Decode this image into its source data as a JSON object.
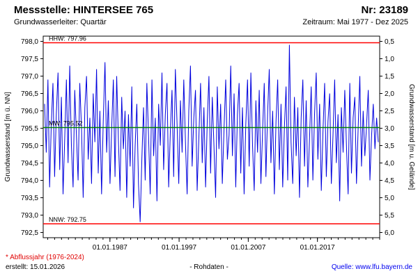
{
  "header": {
    "station_label": "Messstelle: HINTERSEE 765",
    "number_label": "Nr: 23189",
    "aquifer_label": "Grundwasserleiter: Quartär",
    "period_label": "Zeitraum: Mai 1977 - Dez 2025"
  },
  "footer": {
    "note": "* Abflussjahr (1976-2024)",
    "created": "erstellt: 15.01.2026",
    "center": "- Rohdaten -",
    "source_label": "Quelle:",
    "source_link": "www.lfu.bayern.de"
  },
  "colors": {
    "series": "#0000dd",
    "extreme_line": "#ff0000",
    "mean_line": "#008000",
    "frame": "#000000",
    "note_red": "#e00000",
    "link_blue": "#0000ee"
  },
  "chart_data": {
    "type": "line",
    "title": "",
    "ylabel_left": "Grundwasserstand [m ü. NN]",
    "ylabel_right": "Grundwasserstand [m u. Gelände]",
    "xlabel": "",
    "grid": false,
    "legend": "none",
    "ylim_left": [
      792.35,
      798.15
    ],
    "x_range_years": [
      1977.35,
      2026.0
    ],
    "y_tick_values": [
      798.0,
      797.5,
      797.0,
      796.5,
      796.0,
      795.5,
      795.0,
      794.5,
      794.0,
      793.5,
      793.0,
      792.5
    ],
    "y_tick_labels_left": [
      "798,0",
      "797,5",
      "797,0",
      "796,5",
      "796,0",
      "795,5",
      "795,0",
      "794,5",
      "794,0",
      "793,5",
      "793,0",
      "792,5"
    ],
    "y_tick_labels_right": [
      "0,5",
      "1,0",
      "1,5",
      "2,0",
      "2,5",
      "3,0",
      "3,5",
      "4,0",
      "4,5",
      "5,0",
      "5,5",
      "6,0"
    ],
    "x_ticks": [
      {
        "label": "01.01.1987",
        "year": 1987
      },
      {
        "label": "01.01.1997",
        "year": 1997
      },
      {
        "label": "01.01.2007",
        "year": 2007
      },
      {
        "label": "01.01.2017",
        "year": 2017
      }
    ],
    "reference_lines": [
      {
        "name": "HHW",
        "label": "HHW: 797.96",
        "value": 797.96,
        "color": "#ff0000"
      },
      {
        "name": "MW",
        "label": "MW: 795.52",
        "value": 795.52,
        "color": "#008000"
      },
      {
        "name": "NNW",
        "label": "NNW: 792.75",
        "value": 792.75,
        "color": "#ff0000"
      }
    ],
    "series": [
      {
        "name": "Rohdaten",
        "color": "#0000dd",
        "values": [
          796.2,
          794.8,
          796.9,
          793.8,
          795.6,
          796.8,
          794.1,
          795.9,
          797.1,
          794.3,
          796.4,
          793.6,
          795.2,
          796.9,
          794.5,
          797.3,
          795.0,
          793.8,
          796.6,
          795.3,
          794.0,
          796.8,
          795.5,
          793.5,
          796.1,
          797.0,
          794.6,
          795.8,
          793.9,
          796.5,
          795.1,
          797.2,
          794.2,
          796.0,
          793.6,
          795.7,
          797.4,
          794.8,
          796.3,
          793.9,
          795.5,
          796.9,
          794.1,
          797.0,
          795.2,
          793.7,
          796.4,
          794.9,
          796.0,
          793.5,
          795.9,
          794.4,
          796.7,
          793.2,
          795.0,
          796.2,
          793.9,
          792.8,
          794.6,
          796.1,
          794.0,
          796.8,
          795.3,
          793.6,
          796.9,
          794.7,
          795.8,
          793.4,
          796.2,
          795.0,
          797.1,
          794.3,
          795.9,
          796.8,
          793.8,
          795.4,
          796.6,
          794.1,
          797.2,
          795.6,
          793.9,
          796.3,
          794.8,
          796.9,
          795.1,
          793.6,
          796.0,
          797.3,
          794.4,
          795.8,
          796.6,
          793.7,
          795.2,
          796.8,
          794.5,
          796.1,
          793.8,
          795.7,
          797.0,
          794.2,
          796.4,
          795.0,
          793.5,
          796.7,
          794.9,
          796.2,
          793.9,
          795.5,
          796.9,
          794.6,
          795.3,
          797.3,
          794.7,
          796.5,
          793.8,
          795.9,
          796.8,
          794.2,
          796.1,
          793.6,
          795.6,
          796.9,
          794.4,
          797.1,
          795.0,
          793.7,
          796.3,
          794.8,
          796.6,
          793.9,
          795.4,
          796.8,
          794.1,
          795.9,
          797.2,
          794.5,
          796.0,
          793.6,
          795.7,
          796.9,
          794.3,
          796.2,
          793.8,
          795.5,
          796.7,
          794.0,
          797.9,
          795.1,
          793.9,
          796.4,
          794.7,
          796.1,
          793.5,
          795.8,
          796.9,
          794.4,
          796.3,
          793.8,
          795.2,
          796.7,
          794.0,
          795.9,
          797.1,
          794.6,
          796.2,
          793.7,
          795.4,
          796.8,
          794.1,
          795.7,
          796.5,
          793.9,
          795.3,
          796.9,
          794.5,
          795.9,
          793.4,
          796.1,
          794.8,
          796.6,
          795.0,
          793.6,
          796.8,
          794.2,
          795.8,
          796.4,
          793.9,
          795.5,
          797.0,
          794.4,
          796.0,
          794.7,
          795.6,
          796.6,
          794.0,
          795.3,
          796.2,
          794.9,
          795.8,
          795.1
        ]
      }
    ]
  }
}
